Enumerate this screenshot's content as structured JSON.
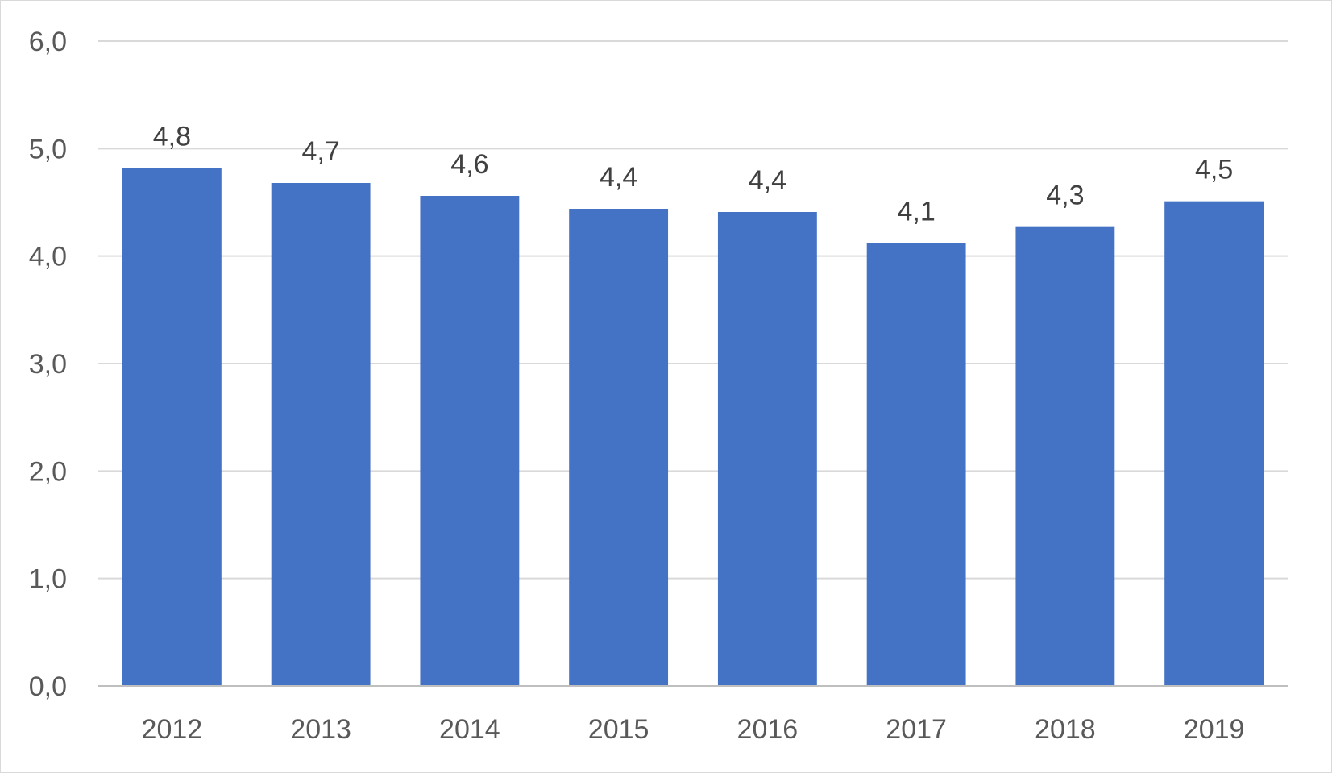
{
  "chart_data": {
    "type": "bar",
    "categories": [
      "2012",
      "2013",
      "2014",
      "2015",
      "2016",
      "2017",
      "2018",
      "2019"
    ],
    "values": [
      4.8,
      4.7,
      4.6,
      4.4,
      4.4,
      4.1,
      4.3,
      4.5
    ],
    "bar_values_precise": [
      4.82,
      4.68,
      4.56,
      4.44,
      4.41,
      4.12,
      4.27,
      4.51
    ],
    "data_labels": [
      "4,8",
      "4,7",
      "4,6",
      "4,4",
      "4,4",
      "4,1",
      "4,3",
      "4,5"
    ],
    "y_ticks": [
      "0,0",
      "1,0",
      "2,0",
      "3,0",
      "4,0",
      "5,0",
      "6,0"
    ],
    "ylim": [
      0,
      6
    ],
    "grid": true,
    "legend": "none",
    "colors": {
      "bar": "#4472c4",
      "grid": "#d9d9d9",
      "axis": "#bfbfbf",
      "tick_text": "#595959",
      "label_text": "#404040"
    }
  }
}
